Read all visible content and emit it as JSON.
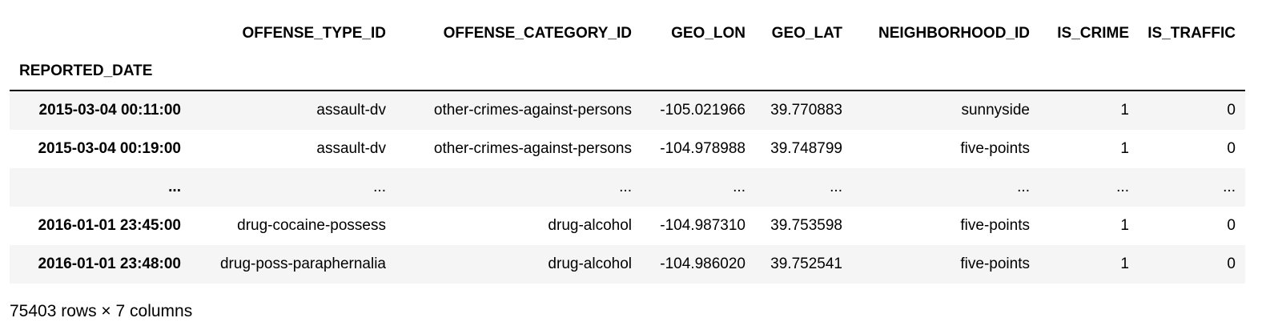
{
  "table": {
    "columns": [
      "",
      "OFFENSE_TYPE_ID",
      "OFFENSE_CATEGORY_ID",
      "GEO_LON",
      "GEO_LAT",
      "NEIGHBORHOOD_ID",
      "IS_CRIME",
      "IS_TRAFFIC"
    ],
    "index_name": "REPORTED_DATE",
    "rows": [
      [
        "2015-03-04 00:11:00",
        "assault-dv",
        "other-crimes-against-persons",
        "-105.021966",
        "39.770883",
        "sunnyside",
        "1",
        "0"
      ],
      [
        "2015-03-04 00:19:00",
        "assault-dv",
        "other-crimes-against-persons",
        "-104.978988",
        "39.748799",
        "five-points",
        "1",
        "0"
      ],
      [
        "...",
        "...",
        "...",
        "...",
        "...",
        "...",
        "...",
        "..."
      ],
      [
        "2016-01-01 23:45:00",
        "drug-cocaine-possess",
        "drug-alcohol",
        "-104.987310",
        "39.753598",
        "five-points",
        "1",
        "0"
      ],
      [
        "2016-01-01 23:48:00",
        "drug-poss-paraphernalia",
        "drug-alcohol",
        "-104.986020",
        "39.752541",
        "five-points",
        "1",
        "0"
      ]
    ]
  },
  "footer": {
    "shape_text": "75403 rows × 7 columns"
  }
}
